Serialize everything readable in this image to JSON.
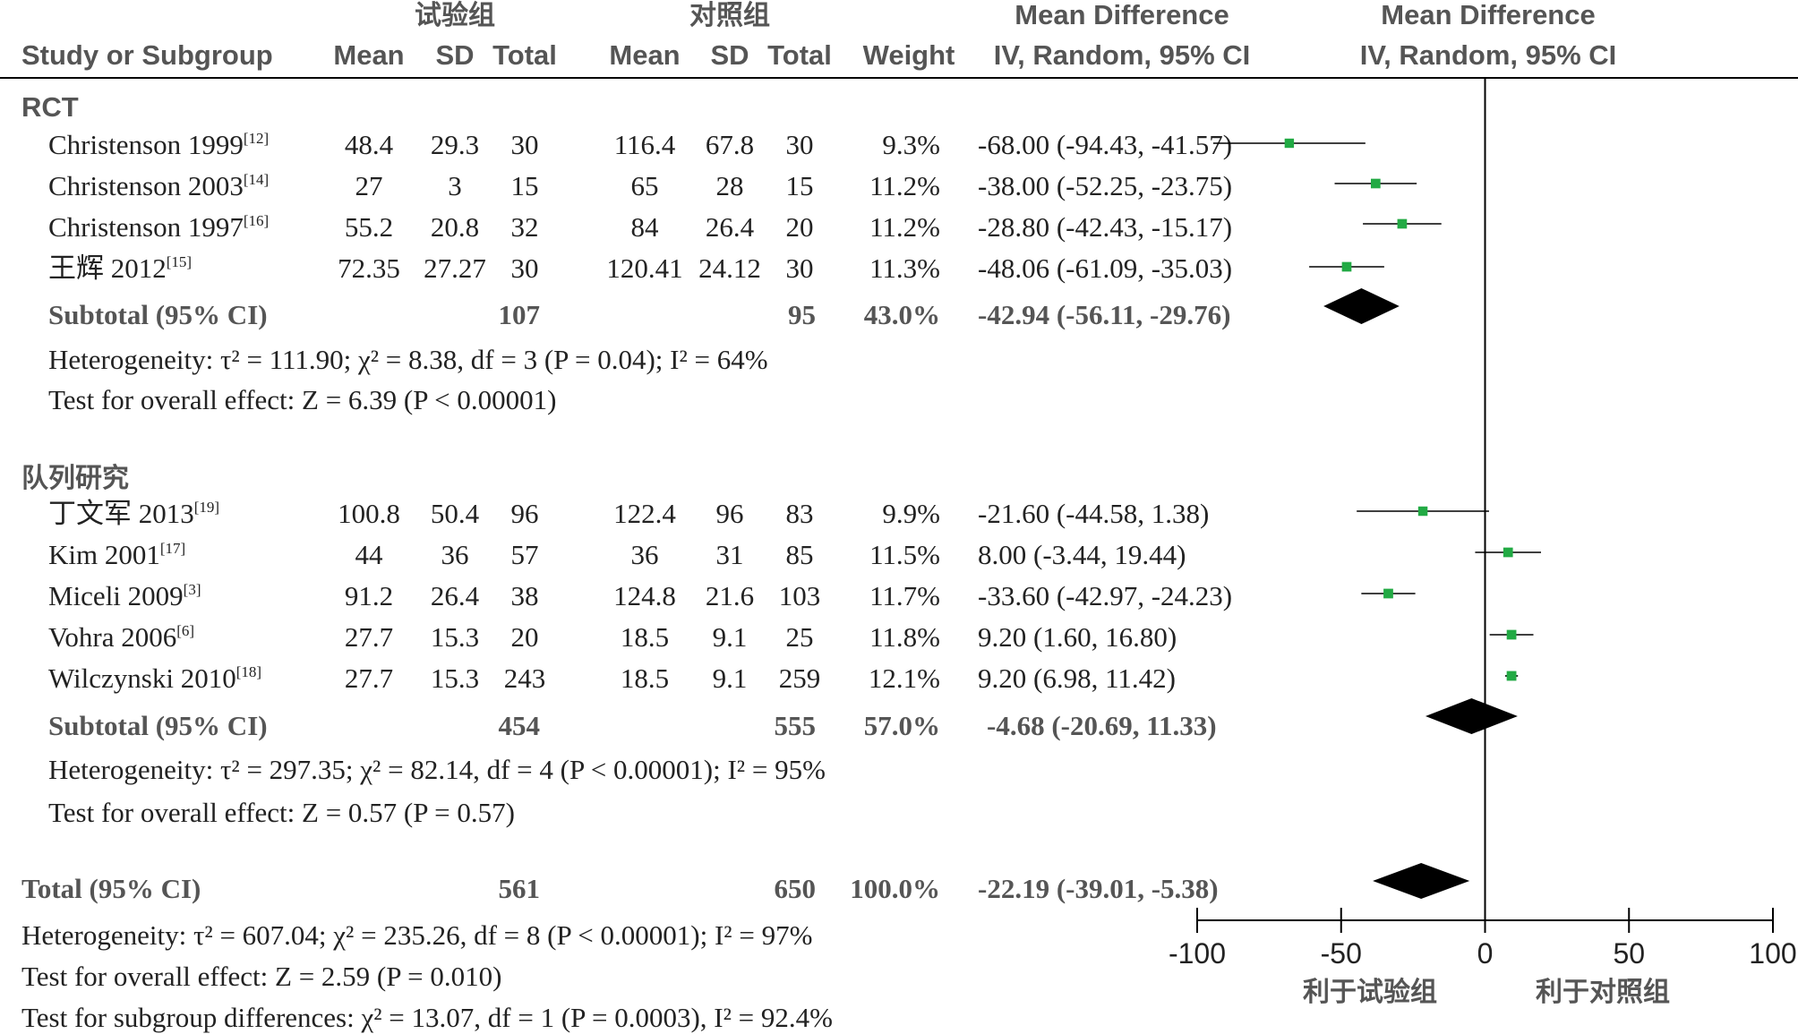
{
  "headers": {
    "group_exp": "试验组",
    "group_ctrl": "对照组",
    "study_col": "Study or Subgroup",
    "mean": "Mean",
    "sd": "SD",
    "total": "Total",
    "weight": "Weight",
    "md_title": "Mean Difference",
    "md_sub": "IV, Random, 95% CI",
    "plot_title": "Mean Difference",
    "plot_sub": "IV, Random, 95% CI"
  },
  "subgroups": [
    {
      "name": "RCT",
      "studies": [
        {
          "study": "Christenson 1999",
          "ref": "[12]",
          "e_mean": "48.4",
          "e_sd": "29.3",
          "e_total": "30",
          "c_mean": "116.4",
          "c_sd": "67.8",
          "c_total": "30",
          "weight": "9.3%",
          "ci_text": "-68.00 (-94.43, -41.57)"
        },
        {
          "study": "Christenson 2003",
          "ref": "[14]",
          "e_mean": "27",
          "e_sd": "3",
          "e_total": "15",
          "c_mean": "65",
          "c_sd": "28",
          "c_total": "15",
          "weight": "11.2%",
          "ci_text": "-38.00 (-52.25, -23.75)"
        },
        {
          "study": "Christenson 1997",
          "ref": "[16]",
          "e_mean": "55.2",
          "e_sd": "20.8",
          "e_total": "32",
          "c_mean": "84",
          "c_sd": "26.4",
          "c_total": "20",
          "weight": "11.2%",
          "ci_text": "-28.80 (-42.43, -15.17)"
        },
        {
          "study": "王辉 2012",
          "ref": "[15]",
          "e_mean": "72.35",
          "e_sd": "27.27",
          "e_total": "30",
          "c_mean": "120.41",
          "c_sd": "24.12",
          "c_total": "30",
          "weight": "11.3%",
          "ci_text": "-48.06 (-61.09, -35.03)"
        }
      ],
      "subtotal": {
        "label": "Subtotal (95% CI)",
        "e_total": "107",
        "c_total": "95",
        "weight": "43.0%",
        "ci_text": "-42.94 (-56.11, -29.76)"
      },
      "heterogeneity": "Heterogeneity: τ² = 111.90; χ² = 8.38, df = 3 (P = 0.04); I² = 64%",
      "overall_effect": "Test for overall effect: Z = 6.39 (P < 0.00001)"
    },
    {
      "name": "队列研究",
      "studies": [
        {
          "study": "丁文军 2013",
          "ref": "[19]",
          "e_mean": "100.8",
          "e_sd": "50.4",
          "e_total": "96",
          "c_mean": "122.4",
          "c_sd": "96",
          "c_total": "83",
          "weight": "9.9%",
          "ci_text": "-21.60 (-44.58, 1.38)"
        },
        {
          "study": "Kim 2001",
          "ref": "[17]",
          "e_mean": "44",
          "e_sd": "36",
          "e_total": "57",
          "c_mean": "36",
          "c_sd": "31",
          "c_total": "85",
          "weight": "11.5%",
          "ci_text": "8.00 (-3.44, 19.44)"
        },
        {
          "study": "Miceli 2009",
          "ref": "[3]",
          "e_mean": "91.2",
          "e_sd": "26.4",
          "e_total": "38",
          "c_mean": "124.8",
          "c_sd": "21.6",
          "c_total": "103",
          "weight": "11.7%",
          "ci_text": "-33.60 (-42.97, -24.23)"
        },
        {
          "study": "Vohra 2006",
          "ref": "[6]",
          "e_mean": "27.7",
          "e_sd": "15.3",
          "e_total": "20",
          "c_mean": "18.5",
          "c_sd": "9.1",
          "c_total": "25",
          "weight": "11.8%",
          "ci_text": "9.20 (1.60, 16.80)"
        },
        {
          "study": "Wilczynski 2010",
          "ref": "[18]",
          "e_mean": "27.7",
          "e_sd": "15.3",
          "e_total": "243",
          "c_mean": "18.5",
          "c_sd": "9.1",
          "c_total": "259",
          "weight": "12.1%",
          "ci_text": "9.20 (6.98, 11.42)"
        }
      ],
      "subtotal": {
        "label": "Subtotal (95% CI)",
        "e_total": "454",
        "c_total": "555",
        "weight": "57.0%",
        "ci_text": "-4.68 (-20.69, 11.33)"
      },
      "heterogeneity": "Heterogeneity: τ² = 297.35; χ² = 82.14, df = 4 (P < 0.00001); I² = 95%",
      "overall_effect": "Test for overall effect: Z = 0.57 (P = 0.57)"
    }
  ],
  "total": {
    "label": "Total (95% CI)",
    "e_total": "561",
    "c_total": "650",
    "weight": "100.0%",
    "ci_text": "-22.19 (-39.01, -5.38)"
  },
  "footer": {
    "heterogeneity": "Heterogeneity: τ² = 607.04; χ² = 235.26, df = 8 (P < 0.00001); I² = 97%",
    "overall_effect": "Test for overall effect: Z = 2.59 (P = 0.010)",
    "subgroup_diff": "Test for subgroup differences: χ² = 13.07, df = 1 (P = 0.0003), I² = 92.4%"
  },
  "axis": {
    "ticks": [
      "-100",
      "-50",
      "0",
      "50",
      "100"
    ],
    "favours_left": "利于试验组",
    "favours_right": "利于对照组"
  },
  "colors": {
    "marker": "#22aa44",
    "diamond": "#000000",
    "line": "#000000",
    "text": "#222222",
    "header": "#555555"
  },
  "chart_data": {
    "type": "scatter",
    "xlim": [
      -100,
      100
    ],
    "reference_line": 0,
    "scale": "linear",
    "studies": [
      {
        "study": "Christenson 1999",
        "md": -68.0,
        "lo": -94.43,
        "hi": -41.57,
        "weight": 9.3
      },
      {
        "study": "Christenson 2003",
        "md": -38.0,
        "lo": -52.25,
        "hi": -23.75,
        "weight": 11.2
      },
      {
        "study": "Christenson 1997",
        "md": -28.8,
        "lo": -42.43,
        "hi": -15.17,
        "weight": 11.2
      },
      {
        "study": "王辉 2012",
        "md": -48.06,
        "lo": -61.09,
        "hi": -35.03,
        "weight": 11.3
      },
      {
        "study": "丁文军 2013",
        "md": -21.6,
        "lo": -44.58,
        "hi": 1.38,
        "weight": 9.9
      },
      {
        "study": "Kim 2001",
        "md": 8.0,
        "lo": -3.44,
        "hi": 19.44,
        "weight": 11.5
      },
      {
        "study": "Miceli 2009",
        "md": -33.6,
        "lo": -42.97,
        "hi": -24.23,
        "weight": 11.7
      },
      {
        "study": "Vohra 2006",
        "md": 9.2,
        "lo": 1.6,
        "hi": 16.8,
        "weight": 11.8
      },
      {
        "study": "Wilczynski 2010",
        "md": 9.2,
        "lo": 6.98,
        "hi": 11.42,
        "weight": 12.1
      }
    ],
    "summaries": [
      {
        "label": "Subtotal RCT",
        "md": -42.94,
        "lo": -56.11,
        "hi": -29.76
      },
      {
        "label": "Subtotal 队列研究",
        "md": -4.68,
        "lo": -20.69,
        "hi": 11.33
      },
      {
        "label": "Total",
        "md": -22.19,
        "lo": -39.01,
        "hi": -5.38
      }
    ]
  }
}
